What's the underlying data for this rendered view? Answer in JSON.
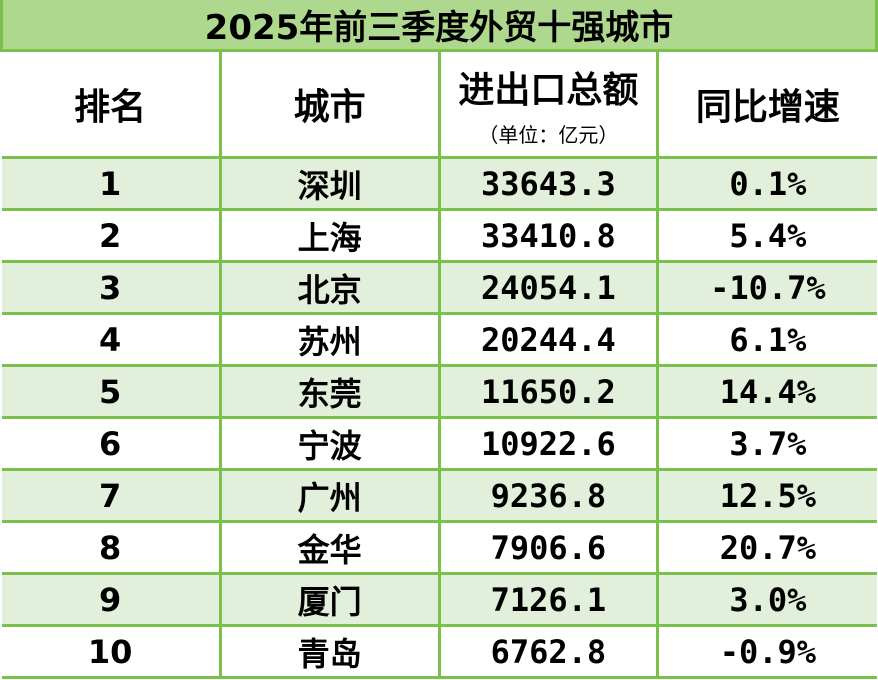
{
  "chart_data": {
    "type": "table",
    "title": "2025年前三季度外贸十强城市",
    "columns": [
      "排名",
      "城市",
      "进出口总额",
      "同比增速"
    ],
    "column_subtitles": {
      "进出口总额": "（单位：亿元）"
    },
    "rows": [
      [
        "1",
        "深圳",
        "33643.3",
        "0.1%"
      ],
      [
        "2",
        "上海",
        "33410.8",
        "5.4%"
      ],
      [
        "3",
        "北京",
        "24054.1",
        "-10.7%"
      ],
      [
        "4",
        "苏州",
        "20244.4",
        "6.1%"
      ],
      [
        "5",
        "东莞",
        "11650.2",
        "14.4%"
      ],
      [
        "6",
        "宁波",
        "10922.6",
        "3.7%"
      ],
      [
        "7",
        "广州",
        "9236.8",
        "12.5%"
      ],
      [
        "8",
        "金华",
        "7906.6",
        "20.7%"
      ],
      [
        "9",
        "厦门",
        "7126.1",
        "3.0%"
      ],
      [
        "10",
        "青岛",
        "6762.8",
        "-0.9%"
      ]
    ],
    "colors": {
      "title_bg": "#aed88e",
      "border": "#7bc04a",
      "shaded_row": "#e2efda"
    }
  }
}
